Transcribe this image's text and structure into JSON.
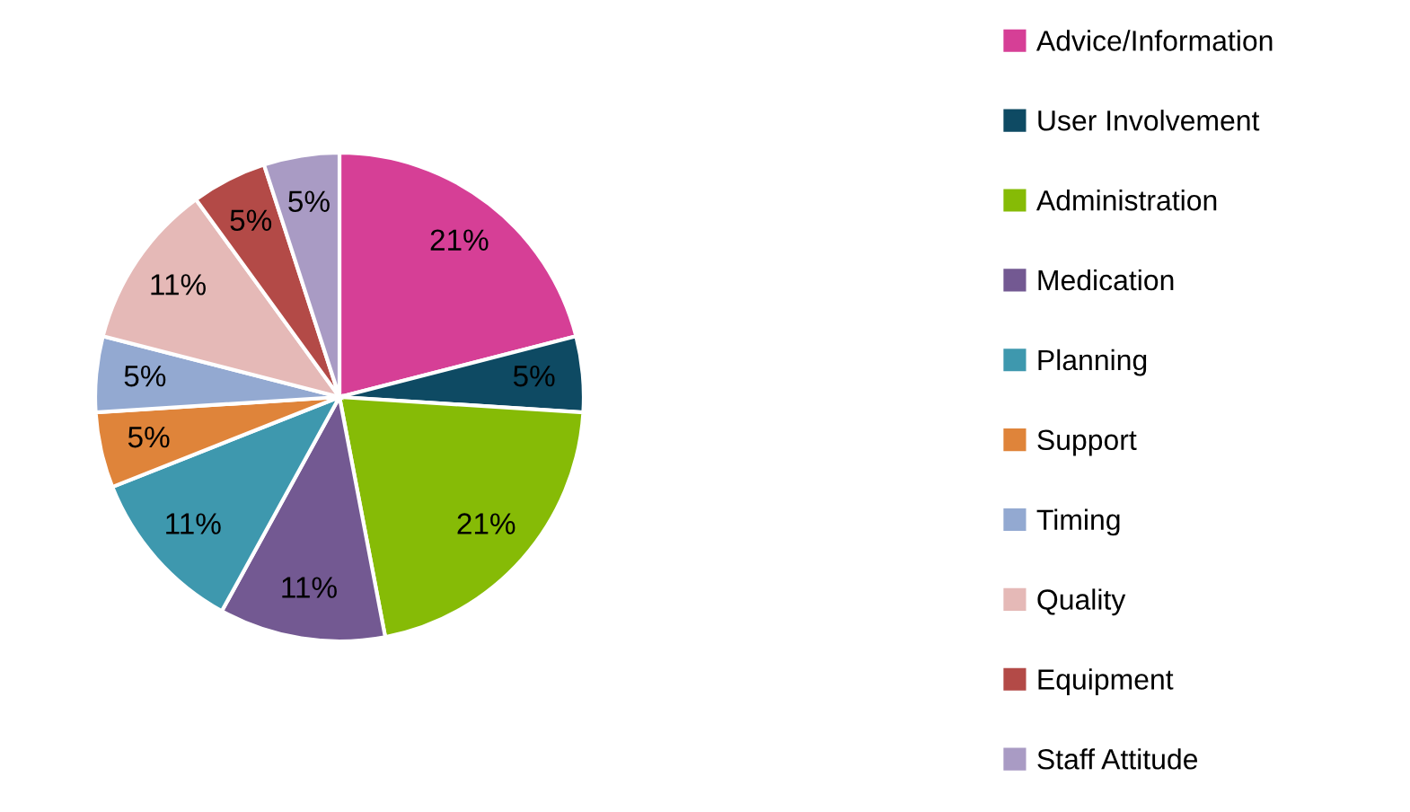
{
  "chart_data": {
    "type": "pie",
    "categories": [
      "Advice/Information",
      "User Involvement",
      "Administration",
      "Medication",
      "Planning",
      "Support",
      "Timing",
      "Quality",
      "Equipment",
      "Staff Attitude"
    ],
    "values": [
      21,
      5,
      21,
      11,
      11,
      5,
      5,
      11,
      5,
      5
    ],
    "value_labels": [
      "21%",
      "5%",
      "21%",
      "11%",
      "11%",
      "5%",
      "5%",
      "11%",
      "5%",
      "5%"
    ],
    "colors": [
      "#d63f96",
      "#0e4a63",
      "#86bb06",
      "#735992",
      "#3e98ae",
      "#df843a",
      "#93a9d1",
      "#e5b9b7",
      "#b34a47",
      "#a99bc4"
    ],
    "legend": "right"
  }
}
